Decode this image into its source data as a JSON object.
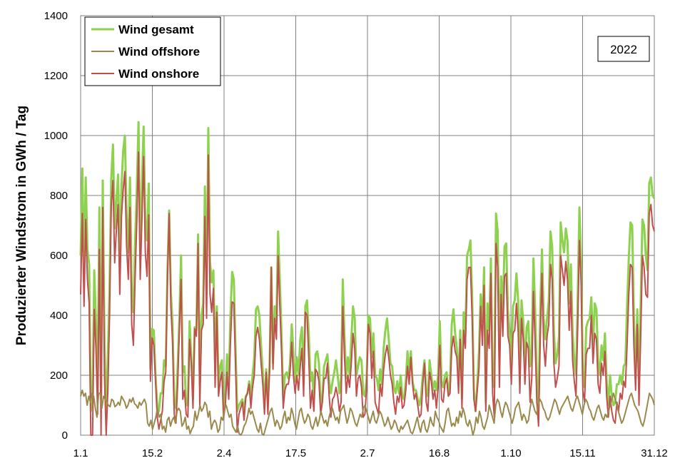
{
  "chart_data": {
    "type": "line",
    "title": "",
    "xlabel": "",
    "ylabel": "Produzierter Windstrom in GWh / Tag",
    "annotation": "2022",
    "ylim": [
      0,
      1400
    ],
    "yticks": [
      "0",
      "200",
      "400",
      "600",
      "800",
      "1000",
      "1200",
      "1400"
    ],
    "xticks": [
      "1.1",
      "15.2",
      "2.4",
      "17.5",
      "2.7",
      "16.8",
      "1.10",
      "15.11",
      "31.12"
    ],
    "grid": true,
    "legend_position": "top-left",
    "colors": {
      "gesamt": "#8dd14f",
      "offshore": "#9a8a4e",
      "onshore": "#c0504d"
    },
    "series": [
      {
        "name": "Wind gesamt",
        "values": [
          600,
          890,
          560,
          860,
          620,
          570,
          80,
          120,
          550,
          380,
          130,
          760,
          120,
          850,
          330,
          60,
          260,
          500,
          860,
          970,
          690,
          780,
          870,
          580,
          830,
          950,
          1000,
          740,
          610,
          860,
          490,
          410,
          650,
          820,
          1045,
          610,
          830,
          1030,
          720,
          650,
          840,
          220,
          355,
          350,
          200,
          100,
          80,
          140,
          140,
          250,
          230,
          550,
          750,
          480,
          370,
          100,
          90,
          230,
          390,
          600,
          210,
          230,
          100,
          100,
          380,
          260,
          120,
          360,
          350,
          670,
          170,
          400,
          440,
          830,
          470,
          1025,
          580,
          510,
          550,
          240,
          430,
          170,
          230,
          250,
          70,
          120,
          270,
          170,
          400,
          545,
          520,
          290,
          80,
          100,
          110,
          120,
          80,
          130,
          140,
          180,
          120,
          200,
          260,
          420,
          430,
          400,
          300,
          210,
          90,
          220,
          110,
          230,
          560,
          240,
          430,
          380,
          680,
          520,
          340,
          120,
          200,
          210,
          190,
          240,
          370,
          280,
          180,
          260,
          200,
          320,
          360,
          170,
          430,
          450,
          340,
          180,
          210,
          120,
          270,
          280,
          240,
          100,
          130,
          230,
          250,
          270,
          180,
          140,
          180,
          210,
          250,
          200,
          140,
          190,
          520,
          330,
          190,
          260,
          200,
          320,
          430,
          390,
          200,
          230,
          260,
          250,
          140,
          130,
          190,
          400,
          390,
          260,
          340,
          200,
          190,
          150,
          220,
          170,
          290,
          350,
          390,
          320,
          240,
          230,
          160,
          140,
          180,
          140,
          200,
          130,
          120,
          180,
          280,
          210,
          280,
          180,
          150,
          150,
          120,
          100,
          130,
          200,
          250,
          150,
          130,
          250,
          200,
          150,
          180,
          150,
          200,
          380,
          180,
          160,
          200,
          210,
          140,
          180,
          370,
          420,
          340,
          290,
          180,
          350,
          120,
          410,
          330,
          600,
          620,
          650,
          460,
          150,
          80,
          170,
          280,
          470,
          380,
          560,
          110,
          440,
          350,
          590,
          180,
          160,
          740,
          680,
          260,
          530,
          410,
          630,
          640,
          420,
          340,
          230,
          430,
          450,
          540,
          450,
          240,
          450,
          380,
          220,
          360,
          380,
          230,
          290,
          590,
          420,
          190,
          100,
          420,
          620,
          390,
          320,
          390,
          450,
          680,
          630,
          350,
          240,
          270,
          330,
          710,
          650,
          610,
          690,
          650,
          440,
          570,
          340,
          250,
          200,
          460,
          760,
          590,
          200,
          160,
          360,
          380,
          390,
          460,
          300,
          440,
          420,
          250,
          200,
          300,
          250,
          340,
          180,
          100,
          200,
          130,
          100,
          110,
          170,
          170,
          200,
          170,
          230,
          240,
          430,
          590,
          710,
          700,
          400,
          190,
          420,
          180,
          440,
          720,
          700,
          600,
          550,
          840,
          860,
          800,
          790
        ]
      },
      {
        "name": "Wind offshore",
        "values": [
          130,
          150,
          130,
          140,
          100,
          130,
          110,
          140,
          130,
          90,
          60,
          140,
          140,
          90,
          130,
          120,
          110,
          100,
          95,
          120,
          115,
          95,
          100,
          110,
          100,
          130,
          120,
          110,
          90,
          100,
          120,
          110,
          125,
          105,
          100,
          90,
          110,
          100,
          110,
          120,
          105,
          40,
          30,
          50,
          20,
          40,
          60,
          90,
          60,
          70,
          20,
          30,
          10,
          50,
          60,
          30,
          50,
          60,
          40,
          80,
          90,
          80,
          30,
          40,
          60,
          20,
          30,
          5,
          20,
          30,
          80,
          50,
          70,
          100,
          80,
          90,
          110,
          100,
          60,
          80,
          20,
          40,
          50,
          40,
          10,
          20,
          60,
          50,
          90,
          100,
          80,
          60,
          70,
          30,
          20,
          10,
          30,
          5,
          0,
          10,
          30,
          40,
          60,
          90,
          70,
          80,
          60,
          40,
          20,
          10,
          40,
          5,
          0,
          20,
          40,
          60,
          80,
          90,
          60,
          30,
          50,
          40,
          20,
          30,
          60,
          80,
          40,
          60,
          50,
          90,
          70,
          40,
          20,
          50,
          80,
          90,
          60,
          40,
          50,
          70,
          60,
          30,
          20,
          40,
          60,
          30,
          50,
          80,
          60,
          40,
          50,
          30,
          60,
          80,
          90,
          70,
          50,
          60,
          40,
          80,
          90,
          100,
          70,
          40,
          60,
          90,
          80,
          60,
          40,
          30,
          50,
          70,
          60,
          90,
          100,
          80,
          60,
          40,
          60,
          80,
          50,
          40,
          60,
          80,
          70,
          50,
          30,
          40,
          60,
          40,
          20,
          30,
          50,
          40,
          20,
          10,
          30,
          20,
          30,
          40,
          50,
          30,
          10,
          5,
          20,
          40,
          60,
          30,
          10,
          40,
          50,
          20,
          10,
          30,
          60,
          40,
          30,
          80,
          60,
          50,
          30,
          20,
          10,
          40,
          80,
          90,
          60,
          30,
          40,
          30,
          60,
          40,
          80,
          60,
          90,
          70,
          40,
          30,
          50,
          30,
          0,
          20,
          60,
          40,
          80,
          60,
          30,
          20,
          40,
          60,
          100,
          80,
          60,
          40,
          100,
          120,
          110,
          80,
          60,
          90,
          110,
          100,
          80,
          60,
          40,
          60,
          90,
          100,
          110,
          80,
          50,
          70,
          60,
          40,
          50,
          90,
          120,
          100,
          80,
          70,
          100,
          120,
          110,
          90,
          80,
          60,
          50,
          60,
          80,
          100,
          120,
          110,
          90,
          70,
          90,
          100,
          110,
          120,
          130,
          110,
          90,
          80,
          100,
          120,
          130,
          110,
          90,
          70,
          100,
          120,
          110,
          90,
          80,
          60,
          50,
          70,
          90,
          100,
          80,
          60,
          50,
          70,
          60,
          80,
          100,
          120,
          140,
          120,
          100,
          80,
          60,
          40,
          50,
          70,
          90,
          110,
          130,
          140,
          120,
          100,
          90,
          80,
          60,
          40,
          30,
          50,
          80,
          110,
          140,
          130,
          120,
          100
        ]
      },
      {
        "name": "Wind onshore",
        "values": [
          470,
          740,
          430,
          720,
          520,
          440,
          0,
          0,
          420,
          290,
          70,
          620,
          0,
          760,
          200,
          0,
          150,
          400,
          765,
          850,
          575,
          685,
          770,
          470,
          730,
          820,
          880,
          630,
          520,
          760,
          370,
          300,
          525,
          715,
          945,
          520,
          720,
          930,
          610,
          530,
          735,
          180,
          325,
          300,
          180,
          60,
          20,
          50,
          80,
          180,
          210,
          520,
          740,
          430,
          310,
          70,
          40,
          170,
          350,
          520,
          120,
          150,
          70,
          60,
          320,
          240,
          90,
          355,
          330,
          640,
          90,
          350,
          370,
          730,
          390,
          935,
          470,
          410,
          490,
          160,
          410,
          130,
          180,
          210,
          60,
          100,
          210,
          120,
          310,
          445,
          440,
          230,
          10,
          70,
          90,
          110,
          50,
          125,
          140,
          170,
          90,
          160,
          200,
          330,
          360,
          320,
          240,
          170,
          70,
          210,
          70,
          225,
          560,
          220,
          390,
          320,
          600,
          430,
          280,
          90,
          150,
          170,
          170,
          210,
          310,
          200,
          140,
          200,
          150,
          230,
          290,
          130,
          410,
          400,
          260,
          90,
          150,
          80,
          220,
          210,
          180,
          70,
          110,
          190,
          190,
          240,
          130,
          60,
          120,
          130,
          160,
          130,
          80,
          110,
          430,
          260,
          140,
          200,
          160,
          240,
          340,
          290,
          130,
          190,
          200,
          160,
          60,
          70,
          160,
          370,
          340,
          190,
          280,
          110,
          90,
          70,
          170,
          130,
          220,
          270,
          300,
          260,
          200,
          170,
          110,
          70,
          130,
          110,
          160,
          90,
          100,
          150,
          230,
          170,
          260,
          170,
          120,
          140,
          100,
          60,
          70,
          170,
          240,
          110,
          80,
          210,
          180,
          120,
          150,
          90,
          160,
          300,
          120,
          110,
          170,
          190,
          130,
          140,
          290,
          330,
          280,
          260,
          140,
          320,
          90,
          350,
          290,
          520,
          560,
          560,
          390,
          120,
          80,
          150,
          220,
          430,
          300,
          500,
          80,
          350,
          290,
          540,
          140,
          60,
          640,
          560,
          160,
          470,
          330,
          530,
          540,
          330,
          300,
          170,
          340,
          350,
          440,
          350,
          140,
          390,
          320,
          170,
          310,
          290,
          110,
          190,
          480,
          310,
          110,
          30,
          320,
          540,
          300,
          230,
          330,
          370,
          570,
          520,
          240,
          160,
          190,
          230,
          600,
          550,
          500,
          580,
          520,
          350,
          480,
          250,
          180,
          130,
          360,
          650,
          510,
          150,
          110,
          270,
          290,
          290,
          400,
          240,
          340,
          320,
          170,
          140,
          240,
          200,
          280,
          130,
          60,
          130,
          80,
          50,
          40,
          110,
          80,
          140,
          120,
          180,
          160,
          300,
          470,
          570,
          560,
          300,
          150,
          370,
          100,
          330,
          600,
          560,
          470,
          460,
          740,
          770,
          700,
          680
        ]
      }
    ]
  }
}
